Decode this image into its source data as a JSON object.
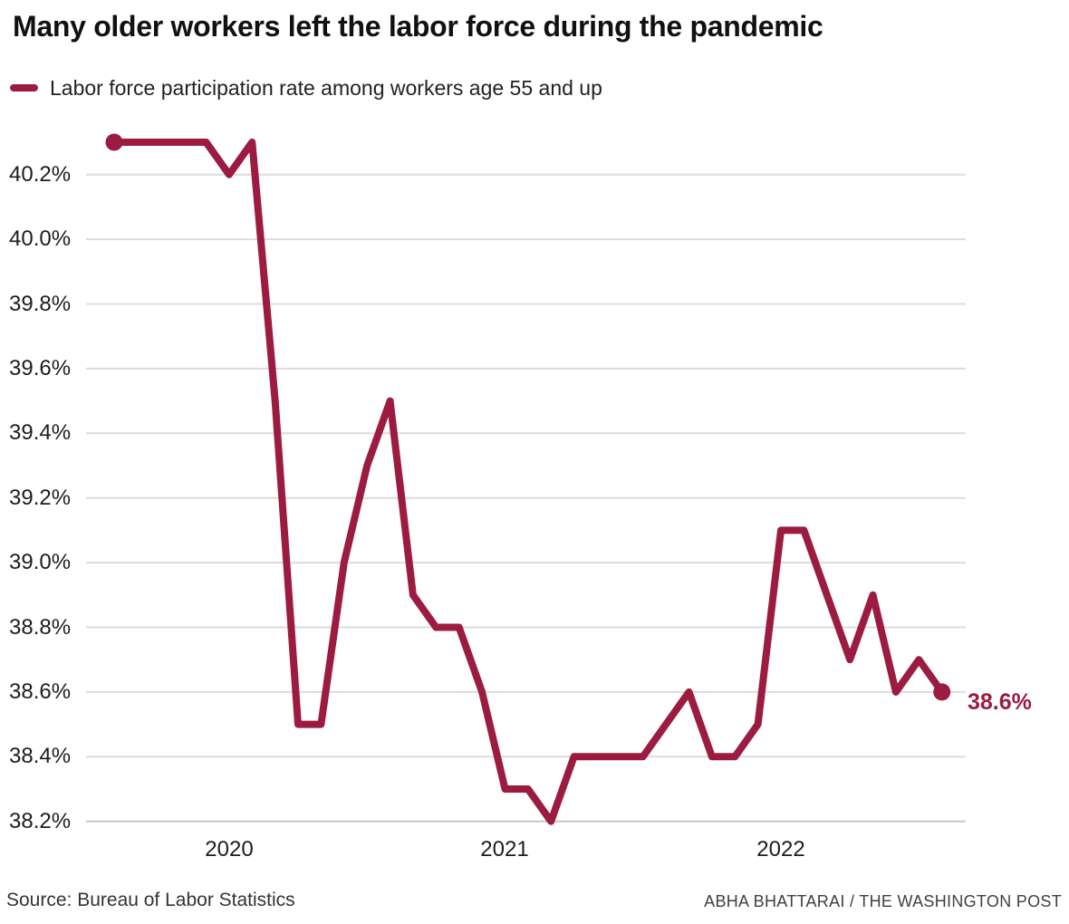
{
  "header": {
    "title": "Many older workers left the labor force during the pandemic"
  },
  "legend": {
    "label": "Labor force participation rate among workers age 55 and up",
    "swatch_color": "#9b1b41"
  },
  "chart_data": {
    "type": "line",
    "title": "Many older workers left the labor force during the pandemic",
    "series_name": "Labor force participation rate among workers age 55 and up",
    "unit": "percent",
    "x": [
      "Aug 2019",
      "Sep 2019",
      "Oct 2019",
      "Nov 2019",
      "Dec 2019",
      "Jan 2020",
      "Feb 2020",
      "Mar 2020",
      "Apr 2020",
      "May 2020",
      "Jun 2020",
      "Jul 2020",
      "Aug 2020",
      "Sep 2020",
      "Oct 2020",
      "Nov 2020",
      "Dec 2020",
      "Jan 2021",
      "Feb 2021",
      "Mar 2021",
      "Apr 2021",
      "May 2021",
      "Jun 2021",
      "Jul 2021",
      "Aug 2021",
      "Sep 2021",
      "Oct 2021",
      "Nov 2021",
      "Dec 2021",
      "Jan 2022",
      "Feb 2022",
      "Mar 2022",
      "Apr 2022",
      "May 2022",
      "Jun 2022",
      "Jul 2022",
      "Aug 2022"
    ],
    "values": [
      40.3,
      40.3,
      40.3,
      40.3,
      40.3,
      40.2,
      40.3,
      39.5,
      38.5,
      38.5,
      39.0,
      39.3,
      39.5,
      38.9,
      38.8,
      38.8,
      38.6,
      38.3,
      38.3,
      38.2,
      38.4,
      38.4,
      38.4,
      38.4,
      38.5,
      38.6,
      38.4,
      38.4,
      38.5,
      39.1,
      39.1,
      38.9,
      38.7,
      38.9,
      38.6,
      38.7,
      38.6
    ],
    "ylim": [
      38.1,
      40.4
    ],
    "yticks": [
      40.2,
      40.0,
      39.8,
      39.6,
      39.4,
      39.2,
      39.0,
      38.8,
      38.6,
      38.4,
      38.2
    ],
    "ytick_labels": [
      "40.2%",
      "40.0%",
      "39.8%",
      "39.6%",
      "39.4%",
      "39.2%",
      "39.0%",
      "38.8%",
      "38.6%",
      "38.4%",
      "38.2%"
    ],
    "xticks": [
      {
        "label": "2020",
        "index": 5
      },
      {
        "label": "2021",
        "index": 17
      },
      {
        "label": "2022",
        "index": 29
      }
    ],
    "grid": "horizontal",
    "legend_position": "top-left",
    "line_color": "#9b1b41",
    "grid_color": "#dcdcdc",
    "baseline_color": "#c8c8c8",
    "markers": [
      "first",
      "last"
    ],
    "endpoint_label": "38.6%"
  },
  "footer": {
    "source": "Source: Bureau of Labor Statistics",
    "credit": "ABHA BHATTARAI / THE WASHINGTON POST"
  }
}
